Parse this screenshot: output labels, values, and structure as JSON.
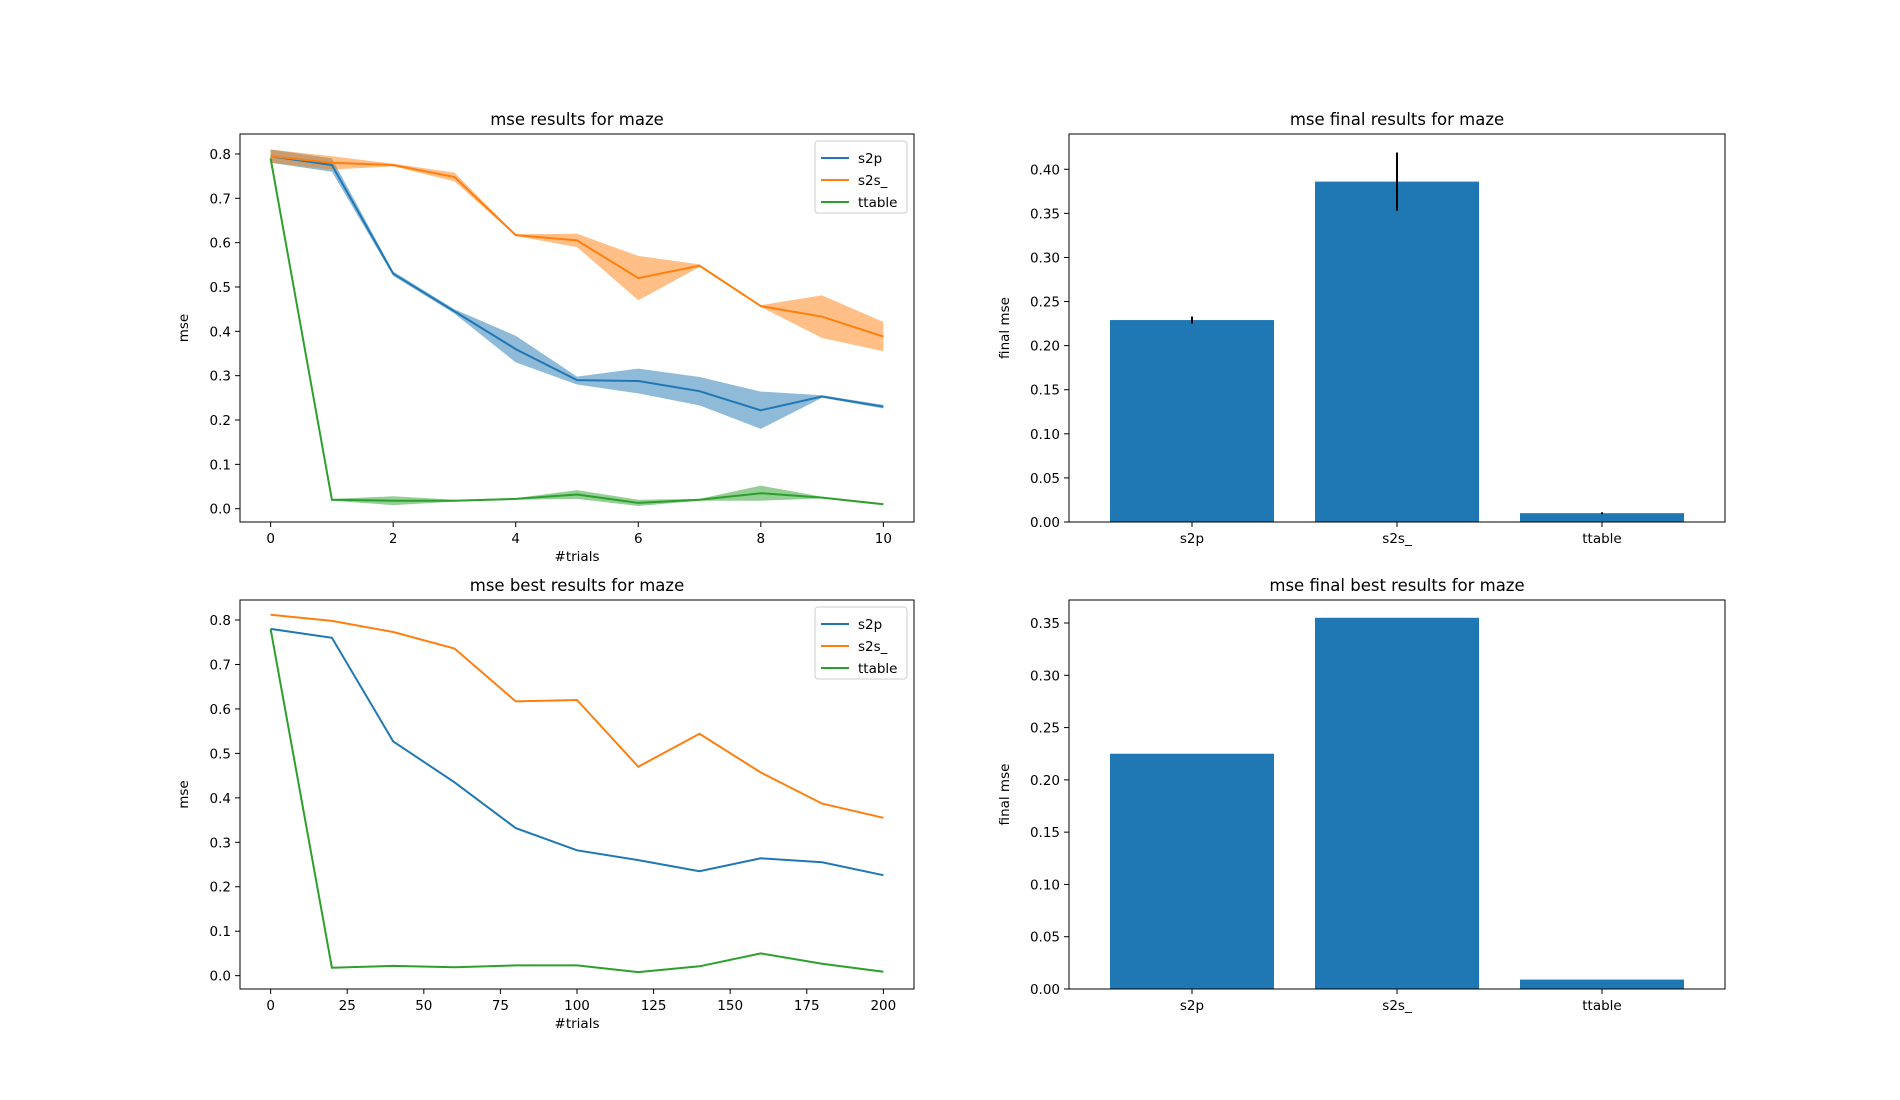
{
  "chart_data": [
    {
      "type": "line",
      "title": "mse results for maze",
      "xlabel": "#trials",
      "ylabel": "mse",
      "xlim": [
        -0.5,
        10.5
      ],
      "ylim": [
        -0.03,
        0.845
      ],
      "xticks": [
        0,
        2,
        4,
        6,
        8,
        10
      ],
      "yticks": [
        0.0,
        0.1,
        0.2,
        0.3,
        0.4,
        0.5,
        0.6,
        0.7,
        0.8
      ],
      "tick_decimals": 1,
      "legend": "upper right",
      "grid": false,
      "x": [
        0,
        1,
        2,
        3,
        4,
        5,
        6,
        7,
        8,
        9,
        10
      ],
      "series": [
        {
          "name": "s2p",
          "color": "#1f77b4",
          "values": [
            0.795,
            0.775,
            0.53,
            0.445,
            0.36,
            0.29,
            0.288,
            0.265,
            0.222,
            0.253,
            0.23
          ],
          "lower": [
            0.78,
            0.76,
            0.525,
            0.44,
            0.33,
            0.28,
            0.26,
            0.233,
            0.18,
            0.25,
            0.226
          ],
          "upper": [
            0.81,
            0.79,
            0.535,
            0.45,
            0.39,
            0.298,
            0.316,
            0.297,
            0.264,
            0.256,
            0.234
          ]
        },
        {
          "name": "s2s_",
          "color": "#ff7f0e",
          "values": [
            0.795,
            0.78,
            0.775,
            0.748,
            0.617,
            0.605,
            0.52,
            0.548,
            0.457,
            0.433,
            0.388
          ],
          "lower": [
            0.78,
            0.765,
            0.772,
            0.738,
            0.615,
            0.59,
            0.47,
            0.545,
            0.455,
            0.385,
            0.355
          ],
          "upper": [
            0.81,
            0.795,
            0.778,
            0.758,
            0.619,
            0.62,
            0.57,
            0.551,
            0.459,
            0.481,
            0.421
          ]
        },
        {
          "name": "ttable",
          "color": "#2ca02c",
          "values": [
            0.79,
            0.02,
            0.018,
            0.018,
            0.022,
            0.032,
            0.013,
            0.02,
            0.035,
            0.025,
            0.01
          ],
          "lower": [
            0.78,
            0.018,
            0.008,
            0.016,
            0.02,
            0.022,
            0.006,
            0.018,
            0.018,
            0.023,
            0.008
          ],
          "upper": [
            0.8,
            0.022,
            0.028,
            0.02,
            0.024,
            0.042,
            0.02,
            0.022,
            0.052,
            0.027,
            0.012
          ]
        }
      ]
    },
    {
      "type": "bar",
      "title": "mse final results for maze",
      "xlabel": "",
      "ylabel": "final mse",
      "ylim": [
        0,
        0.44
      ],
      "yticks": [
        0.0,
        0.05,
        0.1,
        0.15,
        0.2,
        0.25,
        0.3,
        0.35,
        0.4
      ],
      "tick_decimals": 2,
      "color": "#1f77b4",
      "categories": [
        "s2p",
        "s2s_",
        "ttable"
      ],
      "values": [
        0.229,
        0.386,
        0.01
      ],
      "errors": [
        0.004,
        0.033,
        0.001
      ]
    },
    {
      "type": "line",
      "title": "mse best results for maze",
      "xlabel": "#trials",
      "ylabel": "mse",
      "xlim": [
        -10,
        210
      ],
      "ylim": [
        -0.03,
        0.845
      ],
      "xticks": [
        0,
        25,
        50,
        75,
        100,
        125,
        150,
        175,
        200
      ],
      "yticks": [
        0.0,
        0.1,
        0.2,
        0.3,
        0.4,
        0.5,
        0.6,
        0.7,
        0.8
      ],
      "tick_decimals": 1,
      "legend": "upper right",
      "grid": false,
      "x": [
        0,
        20,
        40,
        60,
        80,
        100,
        120,
        140,
        160,
        180,
        200
      ],
      "series": [
        {
          "name": "s2p",
          "color": "#1f77b4",
          "values": [
            0.78,
            0.76,
            0.527,
            0.435,
            0.332,
            0.282,
            0.26,
            0.235,
            0.264,
            0.255,
            0.226
          ]
        },
        {
          "name": "s2s_",
          "color": "#ff7f0e",
          "values": [
            0.812,
            0.798,
            0.773,
            0.736,
            0.617,
            0.62,
            0.47,
            0.544,
            0.457,
            0.387,
            0.355
          ]
        },
        {
          "name": "ttable",
          "color": "#2ca02c",
          "values": [
            0.78,
            0.018,
            0.022,
            0.019,
            0.023,
            0.023,
            0.008,
            0.021,
            0.05,
            0.027,
            0.009
          ]
        }
      ]
    },
    {
      "type": "bar",
      "title": "mse final best results for maze",
      "xlabel": "",
      "ylabel": "final mse",
      "ylim": [
        0,
        0.372
      ],
      "yticks": [
        0.0,
        0.05,
        0.1,
        0.15,
        0.2,
        0.25,
        0.3,
        0.35
      ],
      "tick_decimals": 2,
      "color": "#1f77b4",
      "categories": [
        "s2p",
        "s2s_",
        "ttable"
      ],
      "values": [
        0.225,
        0.355,
        0.009
      ]
    }
  ]
}
